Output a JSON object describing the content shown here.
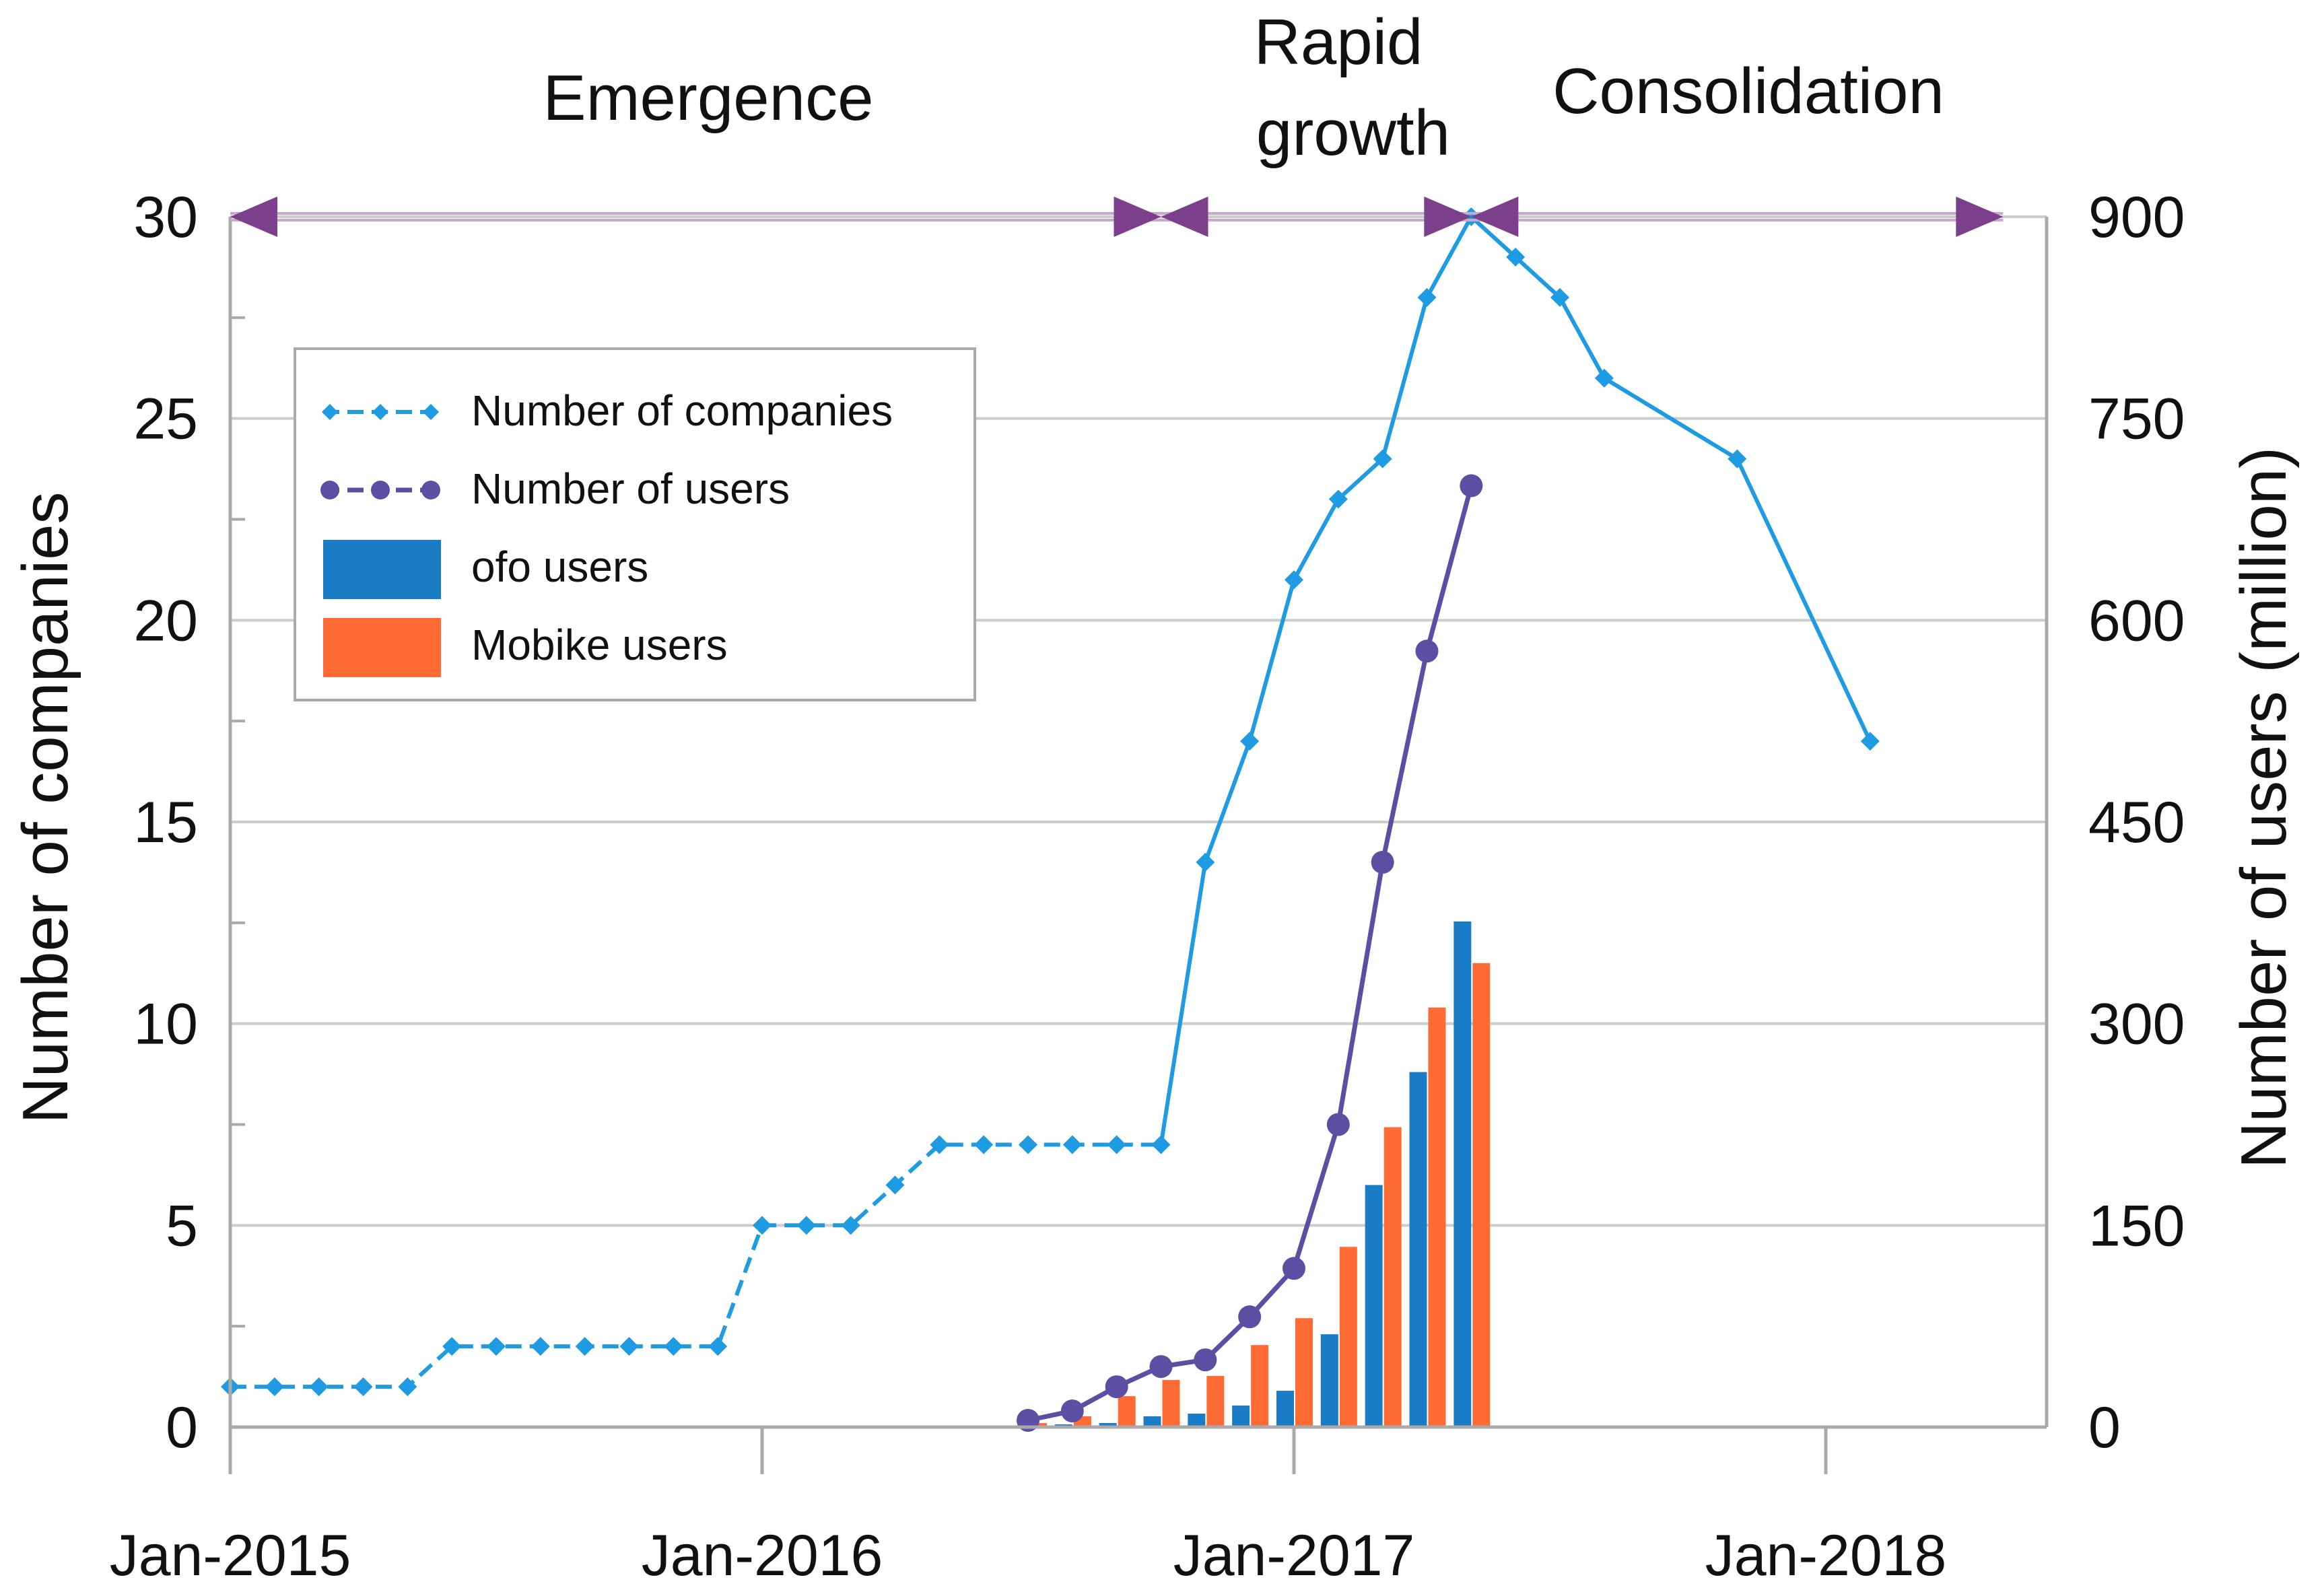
{
  "chart_data": {
    "type": "line",
    "title": "",
    "xlabel": "",
    "ylabel": "Number of companies",
    "y2label": "Number of users (million)",
    "ylim": [
      0,
      30
    ],
    "y2lim": [
      0,
      900
    ],
    "xlim": [
      "2015-01",
      "2018-05"
    ],
    "yticks": [
      "0",
      "5",
      "10",
      "15",
      "20",
      "25",
      "30"
    ],
    "y2ticks": [
      "0",
      "150",
      "300",
      "450",
      "600",
      "750",
      "900"
    ],
    "xticks": [
      {
        "date": "2015-01",
        "label": "Jan-2015"
      },
      {
        "date": "2016-01",
        "label": "Jan-2016"
      },
      {
        "date": "2017-01",
        "label": "Jan-2017"
      },
      {
        "date": "2018-01",
        "label": "Jan-2018"
      }
    ],
    "grid": true,
    "legend_position": "top-left",
    "phases": [
      {
        "label": "Emergence",
        "start": "2015-01",
        "end": "2016-10"
      },
      {
        "label": "Rapid",
        "label2": "growth",
        "start": "2016-10",
        "end": "2017-05"
      },
      {
        "label": "Consolidation",
        "start": "2017-05",
        "end": "2018-05"
      }
    ],
    "series": [
      {
        "name": "Number of companies",
        "axis": "left",
        "style": "line-diamond",
        "color": "#1e9be3",
        "points": [
          [
            "2015-01",
            1
          ],
          [
            "2015-02",
            1
          ],
          [
            "2015-03",
            1
          ],
          [
            "2015-04",
            1
          ],
          [
            "2015-05",
            1
          ],
          [
            "2015-06",
            2
          ],
          [
            "2015-07",
            2
          ],
          [
            "2015-08",
            2
          ],
          [
            "2015-09",
            2
          ],
          [
            "2015-10",
            2
          ],
          [
            "2015-11",
            2
          ],
          [
            "2015-12",
            2
          ],
          [
            "2016-01",
            5
          ],
          [
            "2016-02",
            5
          ],
          [
            "2016-03",
            5
          ],
          [
            "2016-04",
            6
          ],
          [
            "2016-05",
            7
          ],
          [
            "2016-06",
            7
          ],
          [
            "2016-07",
            7
          ],
          [
            "2016-08",
            7
          ],
          [
            "2016-09",
            7
          ],
          [
            "2016-10",
            7
          ],
          [
            "2016-11",
            14
          ],
          [
            "2016-12",
            17
          ],
          [
            "2017-01",
            21
          ],
          [
            "2017-02",
            23
          ],
          [
            "2017-03",
            24
          ],
          [
            "2017-04",
            28
          ],
          [
            "2017-05",
            30
          ],
          [
            "2017-06",
            29
          ],
          [
            "2017-07",
            28
          ],
          [
            "2017-08",
            26
          ],
          [
            "2017-11",
            24
          ],
          [
            "2018-02",
            17
          ]
        ]
      },
      {
        "name": "Number of users",
        "axis": "right",
        "style": "line-circle",
        "color": "#5b4fa3",
        "points": [
          [
            "2016-07",
            5
          ],
          [
            "2016-08",
            12
          ],
          [
            "2016-09",
            30
          ],
          [
            "2016-10",
            45
          ],
          [
            "2016-11",
            50
          ],
          [
            "2016-12",
            82
          ],
          [
            "2017-01",
            118
          ],
          [
            "2017-02",
            225
          ],
          [
            "2017-03",
            420
          ],
          [
            "2017-04",
            577
          ],
          [
            "2017-05",
            700
          ]
        ]
      },
      {
        "name": "ofo users",
        "axis": "right",
        "style": "bar",
        "color": "#1a7cc4",
        "points": [
          [
            "2016-07",
            1
          ],
          [
            "2016-08",
            2
          ],
          [
            "2016-09",
            3
          ],
          [
            "2016-10",
            8
          ],
          [
            "2016-11",
            10
          ],
          [
            "2016-12",
            16
          ],
          [
            "2017-01",
            27
          ],
          [
            "2017-02",
            69
          ],
          [
            "2017-03",
            180
          ],
          [
            "2017-04",
            264
          ],
          [
            "2017-05",
            376
          ]
        ]
      },
      {
        "name": "Mobike users",
        "axis": "right",
        "style": "bar",
        "color": "#ff6b35",
        "points": [
          [
            "2016-07",
            3
          ],
          [
            "2016-08",
            8
          ],
          [
            "2016-09",
            23
          ],
          [
            "2016-10",
            35
          ],
          [
            "2016-11",
            38
          ],
          [
            "2016-12",
            61
          ],
          [
            "2017-01",
            81
          ],
          [
            "2017-02",
            134
          ],
          [
            "2017-03",
            223
          ],
          [
            "2017-04",
            312
          ],
          [
            "2017-05",
            345
          ]
        ]
      }
    ],
    "colors": {
      "phase_arrow": "#7b3f8c",
      "phase_line": "#c8a8cf",
      "grid": "#cccccc",
      "axis": "#aaaaaa",
      "legend_border": "#aaaaaa"
    }
  }
}
